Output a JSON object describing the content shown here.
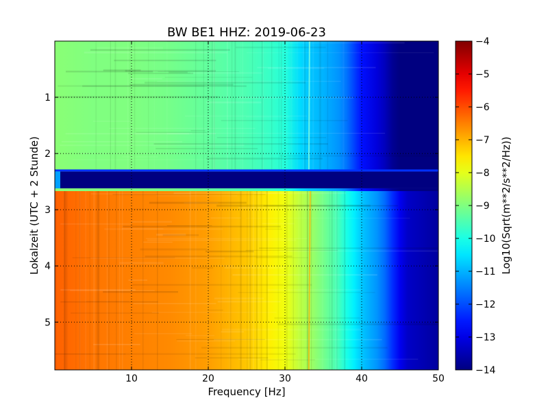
{
  "chart_data": {
    "type": "heatmap",
    "title": "BW BE1 HHZ: 2019-06-23",
    "xlabel": "Frequency [Hz]",
    "ylabel": "Lokalzeit (UTC + 2 Stunde)",
    "xlim": [
      0,
      50
    ],
    "ylim": [
      5.85,
      0
    ],
    "y_inverted": true,
    "x_ticks": [
      10,
      20,
      30,
      40,
      50
    ],
    "x_tick_labels": [
      "10",
      "20",
      "30",
      "40",
      "50"
    ],
    "y_ticks": [
      1,
      2,
      3,
      4,
      5
    ],
    "y_tick_labels": [
      "1",
      "2",
      "3",
      "4",
      "5"
    ],
    "grid": true,
    "colormap": "jet",
    "colorbar": {
      "label": "Log10(Sqrt(m**2/s**2/Hz))",
      "range": [
        -14,
        -4
      ],
      "ticks": [
        -4,
        -5,
        -6,
        -7,
        -8,
        -9,
        -10,
        -11,
        -12,
        -13,
        -14
      ],
      "tick_labels": [
        "−4",
        "−5",
        "−6",
        "−7",
        "−8",
        "−9",
        "−10",
        "−11",
        "−12",
        "−13",
        "−14"
      ]
    },
    "segments": [
      {
        "time_range": [
          0,
          2.32
        ],
        "spectrum_freq": [
          0,
          5,
          10,
          15,
          20,
          25,
          28,
          30,
          32,
          33,
          35,
          37,
          38,
          39,
          40,
          42,
          43,
          44,
          45,
          50
        ],
        "spectrum_value": [
          -8.9,
          -9.0,
          -9.0,
          -9.1,
          -9.3,
          -9.5,
          -9.7,
          -9.9,
          -10.6,
          -10.8,
          -11.0,
          -11.3,
          -11.6,
          -12.1,
          -12.6,
          -13.1,
          -13.4,
          -13.8,
          -14.0,
          -14.0
        ]
      },
      {
        "time_range": [
          2.32,
          2.62
        ],
        "spectrum_freq": [
          0,
          50
        ],
        "spectrum_value": [
          -14.0,
          -14.0
        ]
      },
      {
        "time_range": [
          2.62,
          5.85
        ],
        "spectrum_freq": [
          0,
          5,
          10,
          15,
          20,
          25,
          28,
          30,
          32,
          33,
          35,
          37,
          38,
          39,
          40,
          42,
          43,
          44,
          45,
          46,
          50
        ],
        "spectrum_value": [
          -6.2,
          -6.4,
          -6.5,
          -6.6,
          -6.8,
          -7.2,
          -7.6,
          -7.9,
          -8.4,
          -8.6,
          -9.1,
          -9.6,
          -10.0,
          -10.4,
          -10.8,
          -11.3,
          -11.7,
          -12.3,
          -12.9,
          -13.3,
          -13.7
        ]
      }
    ],
    "annotations": [
      {
        "type": "line",
        "frequency": 33.2,
        "description": "narrow spectral line"
      }
    ]
  }
}
